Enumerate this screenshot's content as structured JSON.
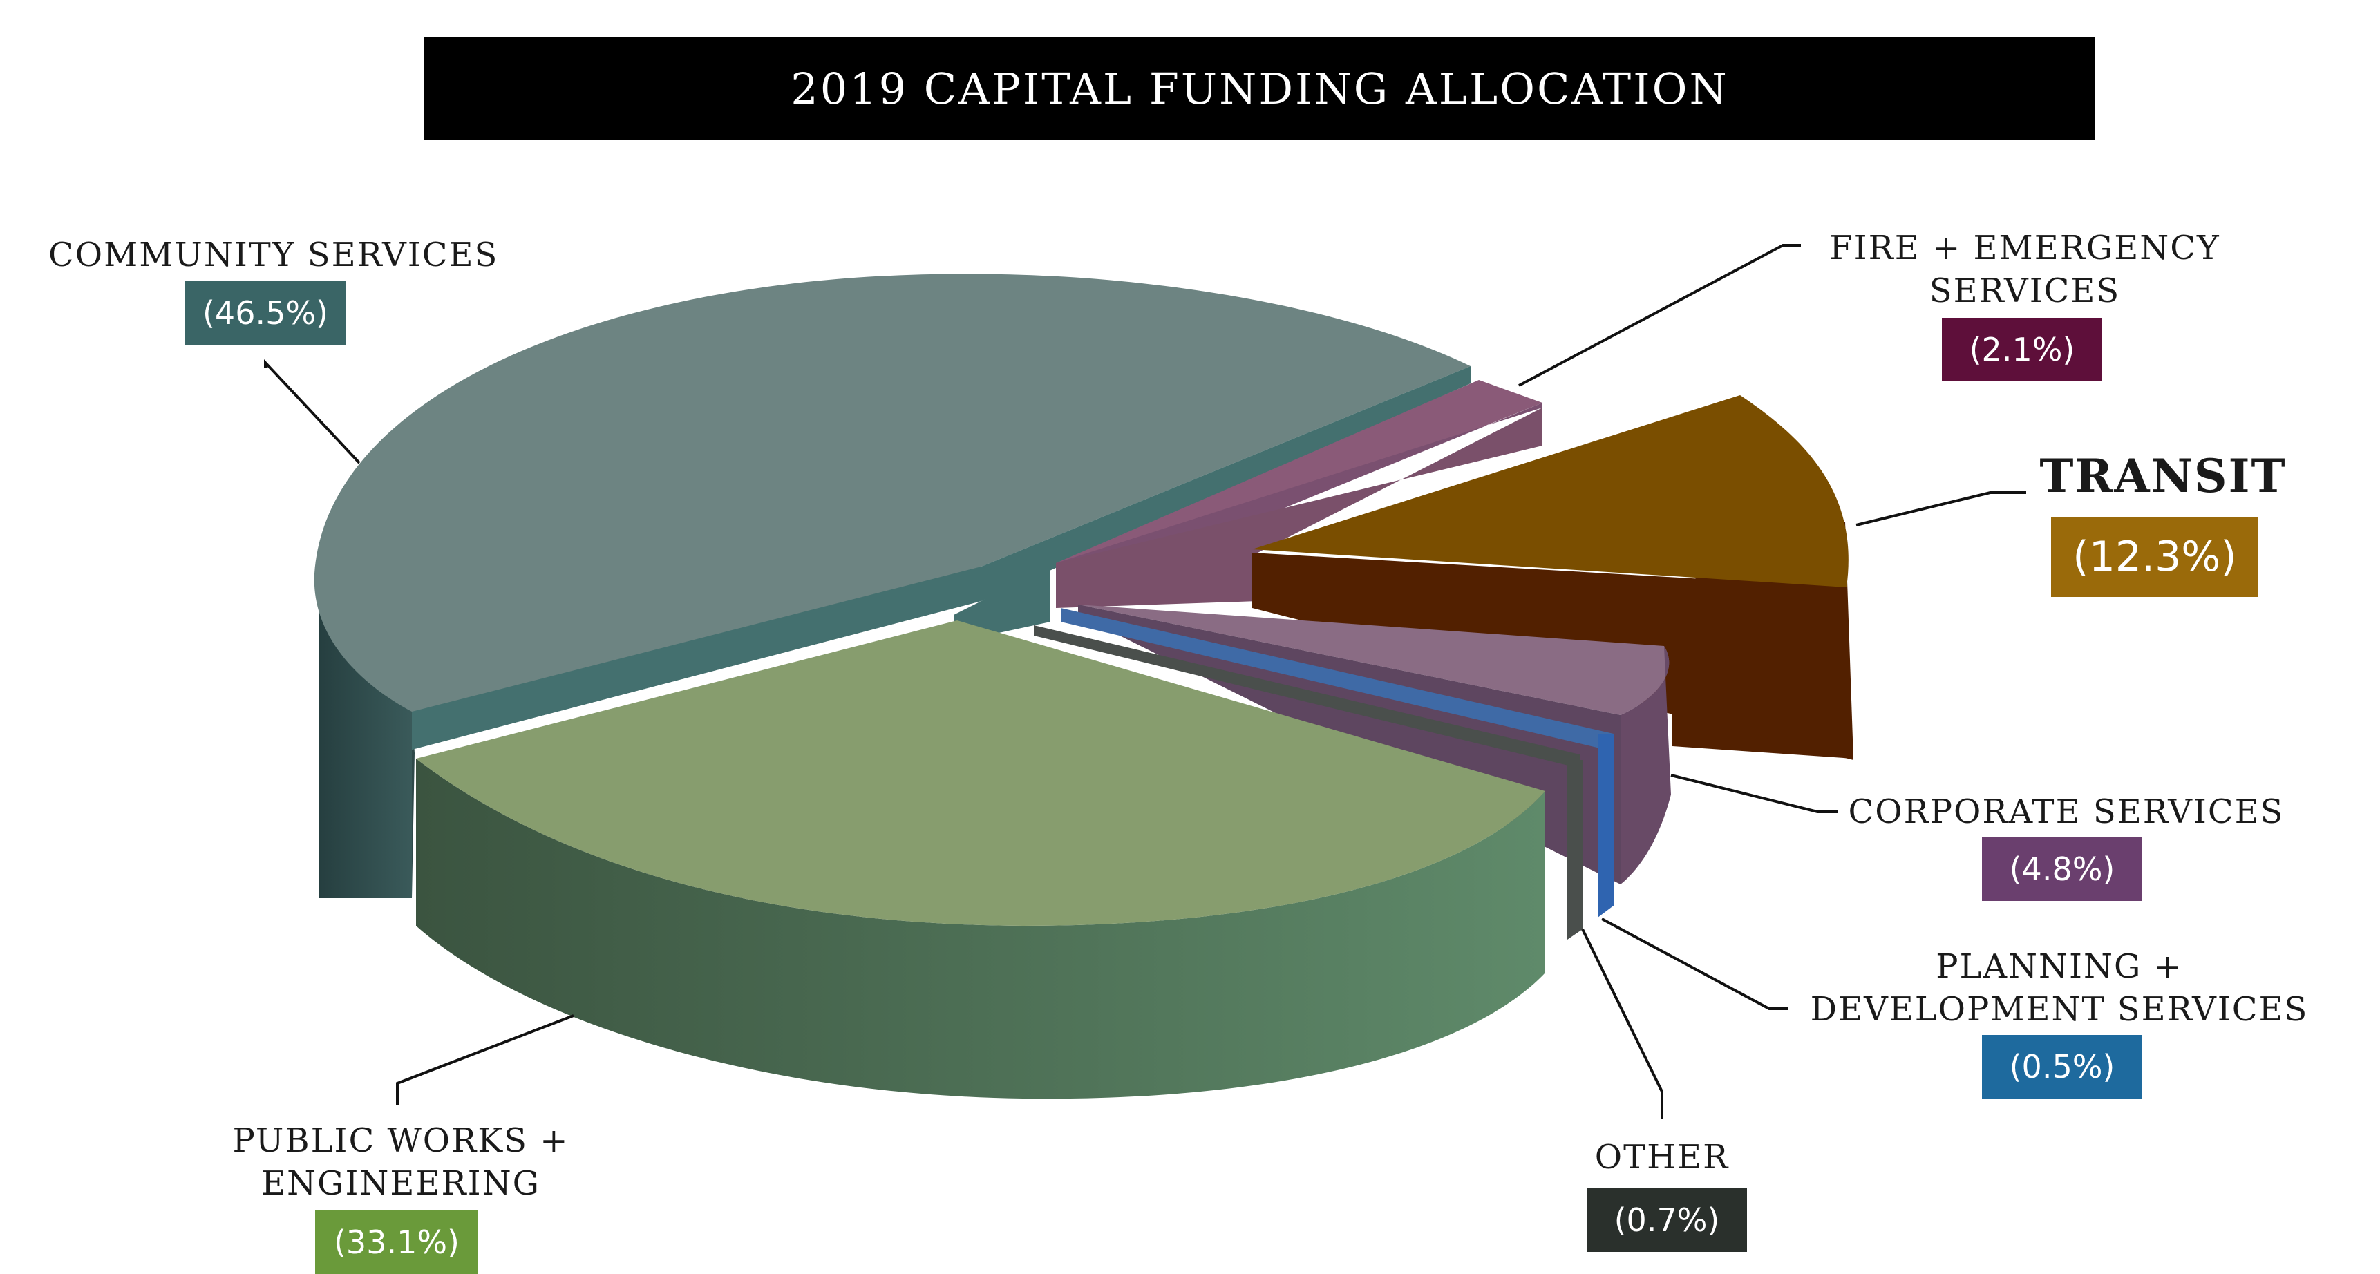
{
  "chart_data": {
    "type": "pie",
    "title": "2019 CAPITAL FUNDING ALLOCATION",
    "slices": [
      {
        "label": "COMMUNITY SERVICES",
        "value": 46.5,
        "display": "(46.5%)",
        "color": "#6d8482",
        "badge_color": "#3a6566"
      },
      {
        "label": "FIRE + EMERGENCY SERVICES",
        "value": 2.1,
        "display": "(2.1%)",
        "color": "#8a5a78",
        "badge_color": "#5e0f3a"
      },
      {
        "label": "TRANSIT",
        "value": 12.3,
        "display": "(12.3%)",
        "color": "#7a4e00",
        "badge_color": "#9a6a0a"
      },
      {
        "label": "CORPORATE SERVICES",
        "value": 4.8,
        "display": "(4.8%)",
        "color": "#8a6c84",
        "badge_color": "#6a3f6e"
      },
      {
        "label": "PLANNING + DEVELOPMENT SERVICES",
        "value": 0.5,
        "display": "(0.5%)",
        "color": "#3f6aa6",
        "badge_color": "#1e6a9e"
      },
      {
        "label": "OTHER",
        "value": 0.7,
        "display": "(0.7%)",
        "color": "#4a4f4c",
        "badge_color": "#2a302c"
      },
      {
        "label": "PUBLIC WORKS + ENGINEERING",
        "value": 33.1,
        "display": "(33.1%)",
        "color": "#879d6e",
        "badge_color": "#6a9a3a"
      }
    ],
    "legend": "callout labels"
  },
  "labels": {
    "community": "COMMUNITY SERVICES",
    "fire_1": "FIRE + EMERGENCY",
    "fire_2": "SERVICES",
    "transit": "TRANSIT",
    "corporate": "CORPORATE SERVICES",
    "planning_1": "PLANNING +",
    "planning_2": "DEVELOPMENT SERVICES",
    "other": "OTHER",
    "public_1": "PUBLIC WORKS +",
    "public_2": "ENGINEERING"
  }
}
